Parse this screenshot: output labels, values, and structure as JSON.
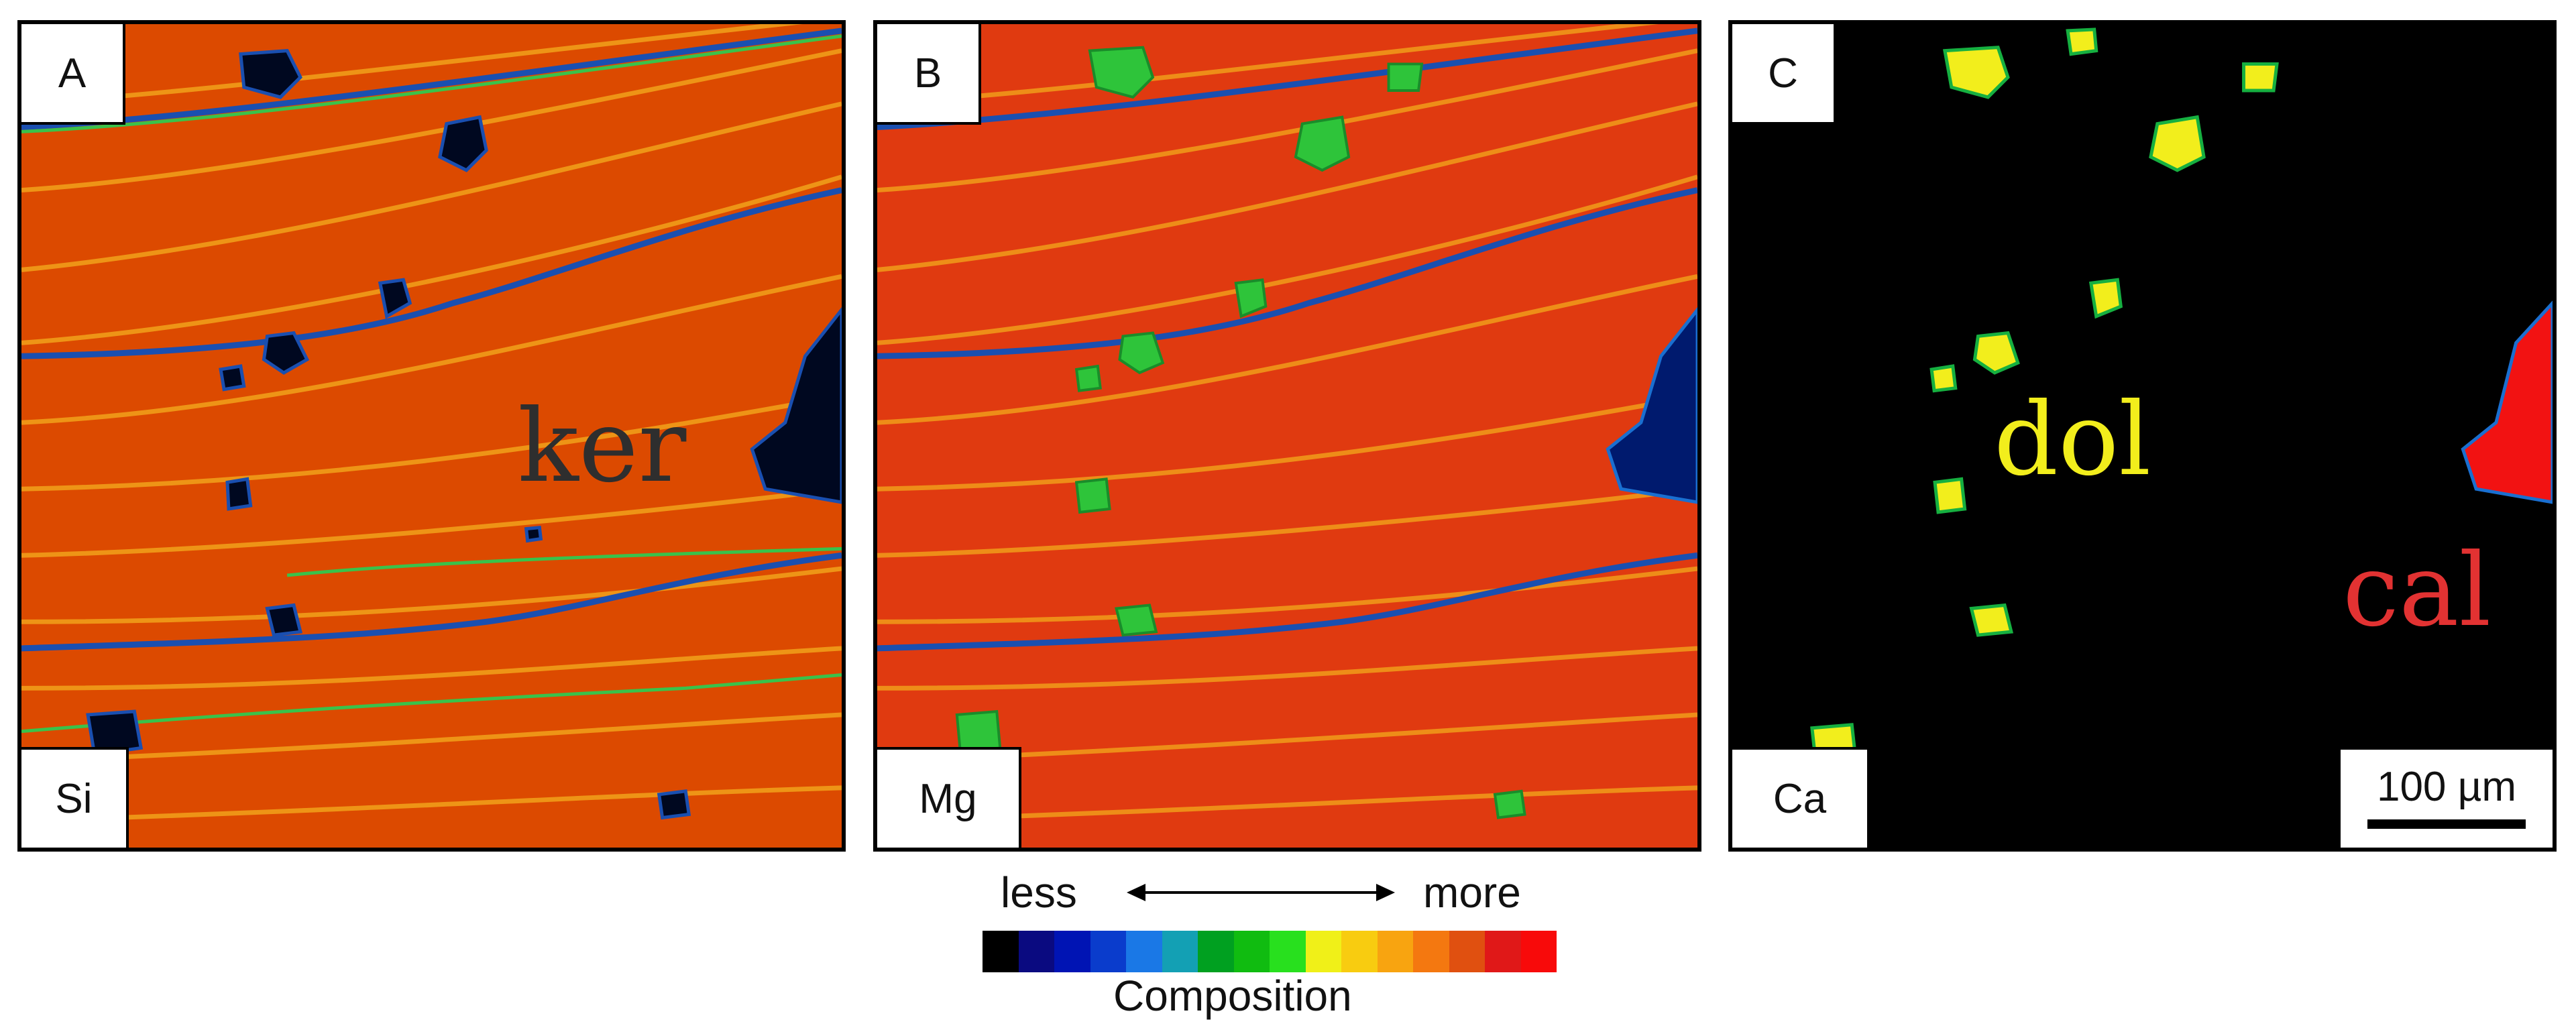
{
  "panels": [
    {
      "letter": "A",
      "element": "Si",
      "mineral": "ker",
      "mineral_color": "#2e2e2e",
      "bg": "#dc4a00"
    },
    {
      "letter": "B",
      "element": "Mg",
      "mineral": "",
      "mineral_color": "",
      "bg": "#e03a10"
    },
    {
      "letter": "C",
      "element": "Ca",
      "minerals": [
        {
          "label": "dol",
          "color": "#f2ee1c"
        },
        {
          "label": "cal",
          "color": "#e23232"
        }
      ],
      "bg": "#000000"
    }
  ],
  "scale_bar": {
    "label": "100 µm"
  },
  "legend": {
    "less": "less",
    "more": "more",
    "title": "Composition",
    "colors": [
      "#000000",
      "#0a0a80",
      "#0014b4",
      "#0a3ccc",
      "#1a78e6",
      "#13a0b4",
      "#00a020",
      "#10bc10",
      "#28e01e",
      "#f0f018",
      "#f8cc10",
      "#f8a410",
      "#f47810",
      "#e05010",
      "#e01818",
      "#f80a0a"
    ]
  }
}
